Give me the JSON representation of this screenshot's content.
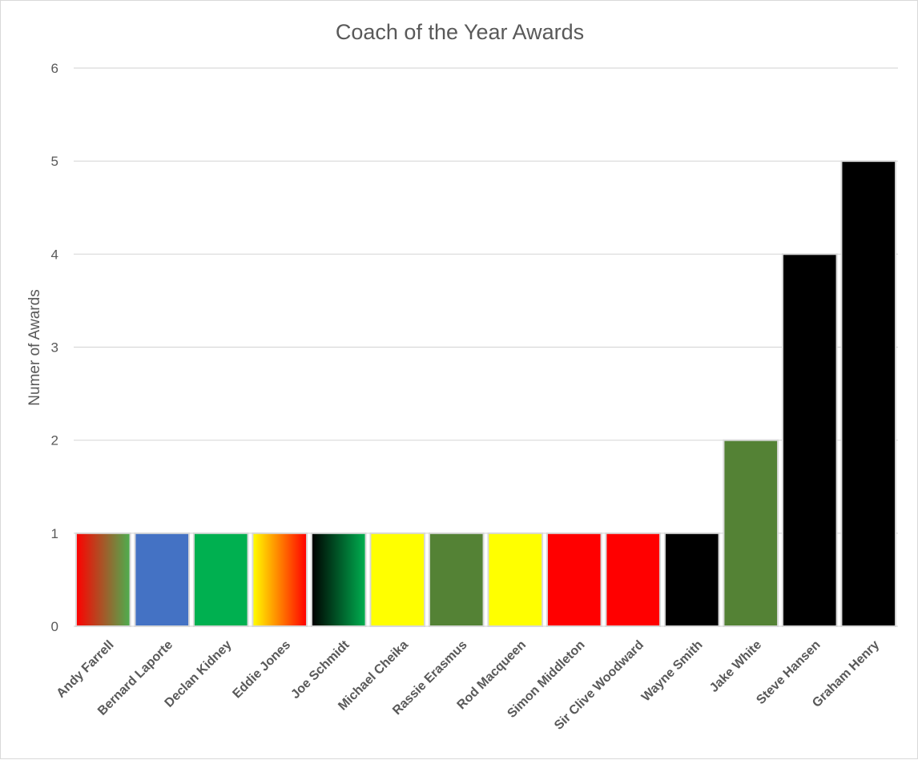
{
  "chart_data": {
    "type": "bar",
    "title": "Coach of the Year Awards",
    "xlabel": "",
    "ylabel": "Numer of Awards",
    "ylim": [
      0,
      6
    ],
    "yticks": [
      0,
      1,
      2,
      3,
      4,
      5,
      6
    ],
    "grid": true,
    "legend": "none",
    "categories": [
      "Andy Farrell",
      "Bernard Laporte",
      "Declan Kidney",
      "Eddie Jones",
      "Joe Schmidt",
      "Michael Cheika",
      "Rassie Erasmus",
      "Rod Macqueen",
      "Simon Middleton",
      "Sir Clive Woodward",
      "Wayne Smith",
      "Jake White",
      "Steve Hansen",
      "Graham Henry"
    ],
    "values": [
      1,
      1,
      1,
      1,
      1,
      1,
      1,
      1,
      1,
      1,
      1,
      2,
      4,
      5
    ],
    "bar_fills": [
      {
        "gradient": [
          "#ff0000",
          "#4caf50"
        ]
      },
      {
        "color": "#4472c4"
      },
      {
        "color": "#00b050"
      },
      {
        "gradient": [
          "#ffff00",
          "#ff0000"
        ]
      },
      {
        "gradient": [
          "#000000",
          "#00b050"
        ]
      },
      {
        "color": "#ffff00"
      },
      {
        "color": "#548235"
      },
      {
        "color": "#ffff00"
      },
      {
        "color": "#ff0000"
      },
      {
        "color": "#ff0000"
      },
      {
        "color": "#000000"
      },
      {
        "color": "#548235"
      },
      {
        "color": "#000000"
      },
      {
        "color": "#000000"
      }
    ]
  }
}
